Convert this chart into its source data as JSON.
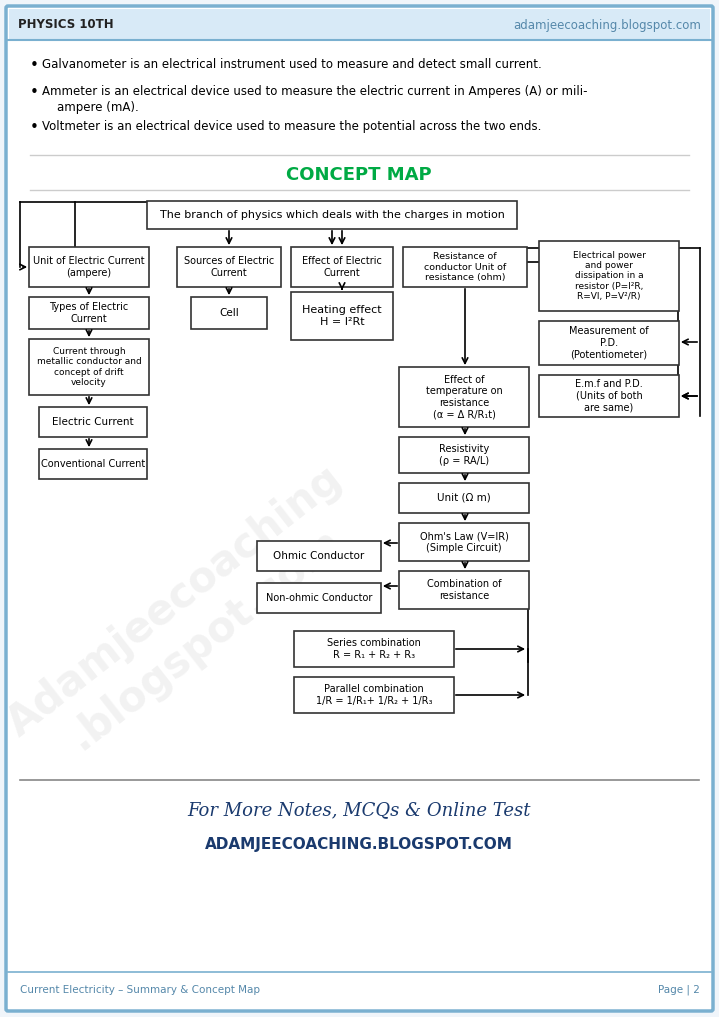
{
  "page_bg": "#f0f5fa",
  "header_left": "PHYSICS 10TH",
  "header_right": "adamjeecoaching.blogspot.com",
  "header_right_color": "#5588aa",
  "header_left_color": "#222222",
  "header_bg": "#d8eaf7",
  "border_color": "#7ab0d0",
  "concept_map_title": "CONCEPT MAP",
  "concept_map_title_color": "#00aa44",
  "footer_line1": "For More Notes, MCQs & Online Test",
  "footer_line2": "ADAMJEECOACHING.BLOGSPOT.COM",
  "footer_color": "#1a3a6e",
  "bottom_left": "Current Electricity – Summary & Concept Map",
  "bottom_right": "Page | 2",
  "bottom_color": "#5588aa",
  "bullet1": "Galvanometer is an electrical instrument used to measure and detect small current.",
  "bullet2a": "Ammeter is an electrical device used to measure the electric current in Amperes (A) or mili-",
  "bullet2b": "    ampere (mA).",
  "bullet3": "Voltmeter is an electrical device used to measure the potential across the two ends."
}
